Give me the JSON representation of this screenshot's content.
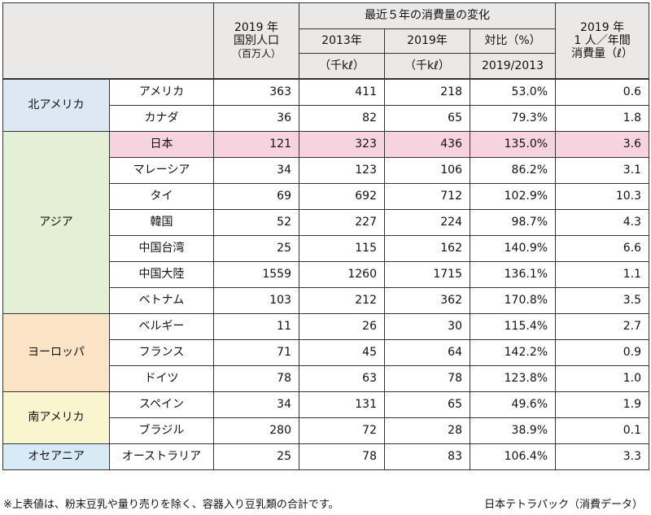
{
  "header": {
    "pop_line1": "2019 年",
    "pop_line2": "国別人口",
    "pop_unit": "（百万人）",
    "change_title": "最近５年の消費量の変化",
    "col_2013": "2013年",
    "col_2019": "2019年",
    "col_ratio": "対比（%）",
    "unit_2013": "（千kℓ）",
    "unit_2019": "（千kℓ）",
    "unit_ratio": "2019/2013",
    "per_line1": "2019 年",
    "per_line2": "1 人／年間",
    "per_line3": "消費量（ℓ）"
  },
  "regions": [
    {
      "name": "北アメリカ",
      "rows": [
        {
          "country": "アメリカ",
          "population": "363",
          "c2013": "411",
          "c2019": "218",
          "ratio": "53.0%",
          "per_capita": "0.6"
        },
        {
          "country": "カナダ",
          "population": "36",
          "c2013": "82",
          "c2019": "65",
          "ratio": "79.3%",
          "per_capita": "1.8"
        }
      ]
    },
    {
      "name": "アジア",
      "rows": [
        {
          "country": "日本",
          "population": "121",
          "c2013": "323",
          "c2019": "436",
          "ratio": "135.0%",
          "per_capita": "3.6"
        },
        {
          "country": "マレーシア",
          "population": "34",
          "c2013": "123",
          "c2019": "106",
          "ratio": "86.2%",
          "per_capita": "3.1"
        },
        {
          "country": "タイ",
          "population": "69",
          "c2013": "692",
          "c2019": "712",
          "ratio": "102.9%",
          "per_capita": "10.3"
        },
        {
          "country": "韓国",
          "population": "52",
          "c2013": "227",
          "c2019": "224",
          "ratio": "98.7%",
          "per_capita": "4.3"
        },
        {
          "country": "中国台湾",
          "population": "25",
          "c2013": "115",
          "c2019": "162",
          "ratio": "140.9%",
          "per_capita": "6.6"
        },
        {
          "country": "中国大陸",
          "population": "1559",
          "c2013": "1260",
          "c2019": "1715",
          "ratio": "136.1%",
          "per_capita": "1.1"
        },
        {
          "country": "ベトナム",
          "population": "103",
          "c2013": "212",
          "c2019": "362",
          "ratio": "170.8%",
          "per_capita": "3.5"
        }
      ]
    },
    {
      "name": "ヨーロッパ",
      "rows": [
        {
          "country": "ベルギー",
          "population": "11",
          "c2013": "26",
          "c2019": "30",
          "ratio": "115.4%",
          "per_capita": "2.7"
        },
        {
          "country": "フランス",
          "population": "71",
          "c2013": "45",
          "c2019": "64",
          "ratio": "142.2%",
          "per_capita": "0.9"
        },
        {
          "country": "ドイツ",
          "population": "78",
          "c2013": "63",
          "c2019": "78",
          "ratio": "123.8%",
          "per_capita": "1.0"
        }
      ]
    },
    {
      "name": "南アメリカ",
      "rows": [
        {
          "country": "スペイン",
          "population": "34",
          "c2013": "131",
          "c2019": "65",
          "ratio": "49.6%",
          "per_capita": "1.9"
        },
        {
          "country": "ブラジル",
          "population": "280",
          "c2013": "72",
          "c2019": "28",
          "ratio": "38.9%",
          "per_capita": "0.1"
        }
      ]
    },
    {
      "name": "オセアニア",
      "rows": [
        {
          "country": "オーストラリア",
          "population": "25",
          "c2013": "78",
          "c2019": "83",
          "ratio": "106.4%",
          "per_capita": "3.3"
        }
      ]
    }
  ],
  "colors": {
    "highlight_row": "#f7d3e0",
    "north_america": "#dde8f5",
    "asia": "#e3f0d5",
    "europe": "#fbe4c6",
    "south_america": "#f9f6cf",
    "oceania": "#d7eaf6",
    "header": "#ebe9e7"
  },
  "footer": {
    "note": "※上表値は、粉末豆乳や量り売りを除く、容器入り豆乳類の合計です。",
    "source": "日本テトラパック（消費データ）"
  }
}
